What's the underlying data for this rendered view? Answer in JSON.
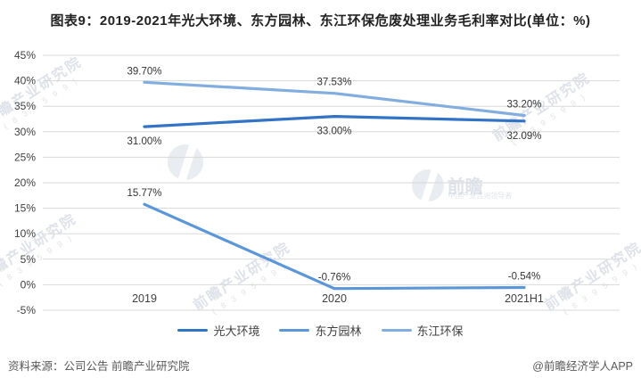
{
  "title": "图表9：2019-2021年光大环境、东方园林、东江环保危废处理业务毛利率对比(单位：%)",
  "chart_data": {
    "type": "line",
    "categories": [
      "2019",
      "2020",
      "2021H1"
    ],
    "series": [
      {
        "name": "光大环境",
        "values": [
          31.0,
          33.0,
          32.09
        ],
        "labels": [
          "31.00%",
          "33.00%",
          "32.09%"
        ],
        "color": "#3273C5",
        "label_position": "below"
      },
      {
        "name": "东方园林",
        "values": [
          15.77,
          -0.76,
          -0.54
        ],
        "labels": [
          "15.77%",
          "-0.76%",
          "-0.54%"
        ],
        "color": "#5B96D8",
        "label_position": "above"
      },
      {
        "name": "东江环保",
        "values": [
          39.7,
          37.53,
          33.2
        ],
        "labels": [
          "39.70%",
          "37.53%",
          "33.20%"
        ],
        "color": "#82AEDF",
        "label_position": "above"
      }
    ],
    "ylim": [
      -5,
      45
    ],
    "ytick_step": 5,
    "ytick_suffix": "%",
    "grid": true,
    "legend_position": "bottom",
    "gridline_color": "#D9D9D9",
    "tick_label_color": "#404040",
    "data_label_color": "#333333"
  },
  "footer": {
    "source": "资料来源：公司公告 前瞻产业研究院",
    "credit": "@前瞻经济学人APP"
  },
  "watermark": {
    "brand_text": "前瞻产业研究院",
    "brand_code": "( 8 3 9 5 9 9 )",
    "logo_text": "前瞻",
    "logo_subtext": "中国产业咨询领导者"
  }
}
